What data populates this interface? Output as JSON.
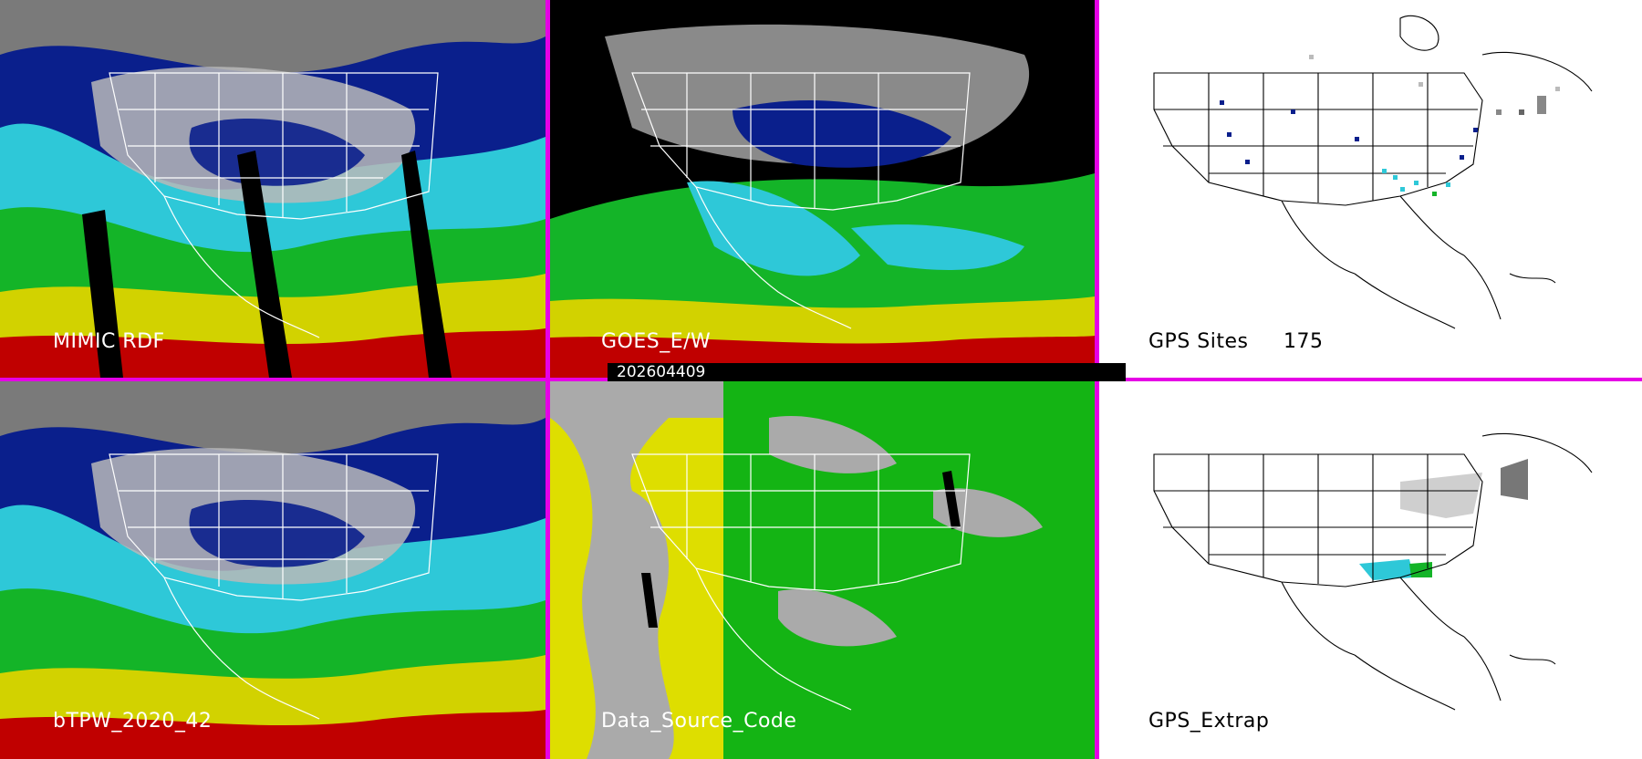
{
  "panels": {
    "mimic": {
      "label": "MIMIC RDF"
    },
    "goes": {
      "label": "GOES_E/W"
    },
    "gps_sites": {
      "label": "GPS Sites",
      "count": "175"
    },
    "btpw": {
      "label": "bTPW_2020_42"
    },
    "data_source": {
      "label": "Data_Source_Code"
    },
    "gps_extrap": {
      "label": "GPS_Extrap"
    }
  },
  "date_stamp": "202604409",
  "colors": {
    "separator": "#e600e6",
    "cloud": "#9a9a9a",
    "dark_blue": "#0a1f8c",
    "cyan": "#2ec8d8",
    "green": "#14b428",
    "yellow": "#d2d200",
    "red": "#c00000",
    "ds_gray": "#aaaaaa",
    "ds_yellow": "#dede00",
    "ds_green": "#14b414"
  }
}
